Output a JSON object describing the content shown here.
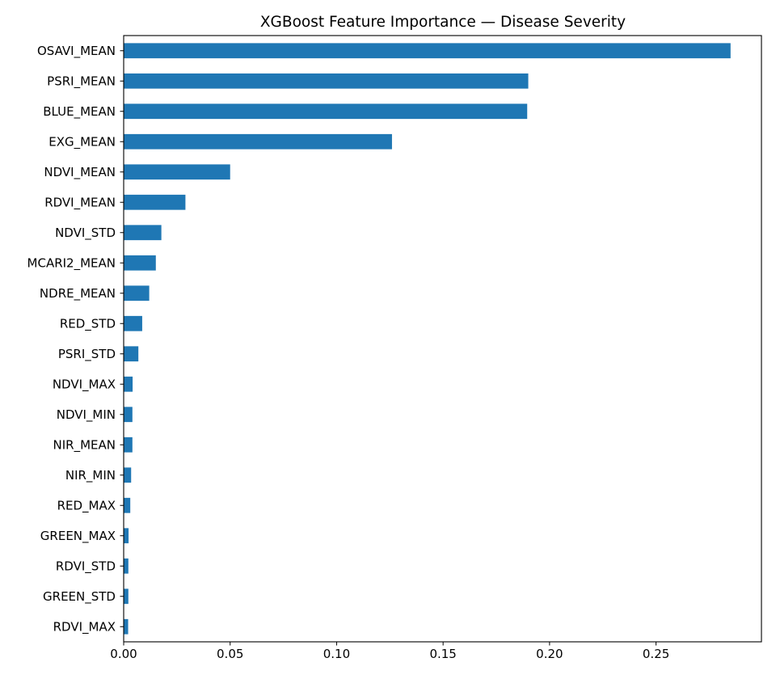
{
  "chart_data": {
    "type": "bar",
    "orientation": "horizontal",
    "title": "XGBoost Feature Importance — Disease Severity",
    "xlabel": "",
    "ylabel": "",
    "xlim": [
      0,
      0.2995
    ],
    "xticks": [
      0.0,
      0.05,
      0.1,
      0.15,
      0.2,
      0.25
    ],
    "xtick_labels": [
      "0.00",
      "0.05",
      "0.10",
      "0.15",
      "0.20",
      "0.25"
    ],
    "grid": false,
    "bar_color": "#1f77b4",
    "categories": [
      "OSAVI_MEAN",
      "PSRI_MEAN",
      "BLUE_MEAN",
      "EXG_MEAN",
      "NDVI_MEAN",
      "RDVI_MEAN",
      "NDVI_STD",
      "MCARI2_MEAN",
      "NDRE_MEAN",
      "RED_STD",
      "PSRI_STD",
      "NDVI_MAX",
      "NDVI_MIN",
      "NIR_MEAN",
      "NIR_MIN",
      "RED_MAX",
      "GREEN_MAX",
      "RDVI_STD",
      "GREEN_STD",
      "RDVI_MAX"
    ],
    "values": [
      0.285,
      0.19,
      0.1895,
      0.126,
      0.05,
      0.029,
      0.0177,
      0.0151,
      0.012,
      0.0087,
      0.0069,
      0.0042,
      0.0041,
      0.0041,
      0.0035,
      0.0031,
      0.0023,
      0.0022,
      0.0022,
      0.0021
    ]
  }
}
